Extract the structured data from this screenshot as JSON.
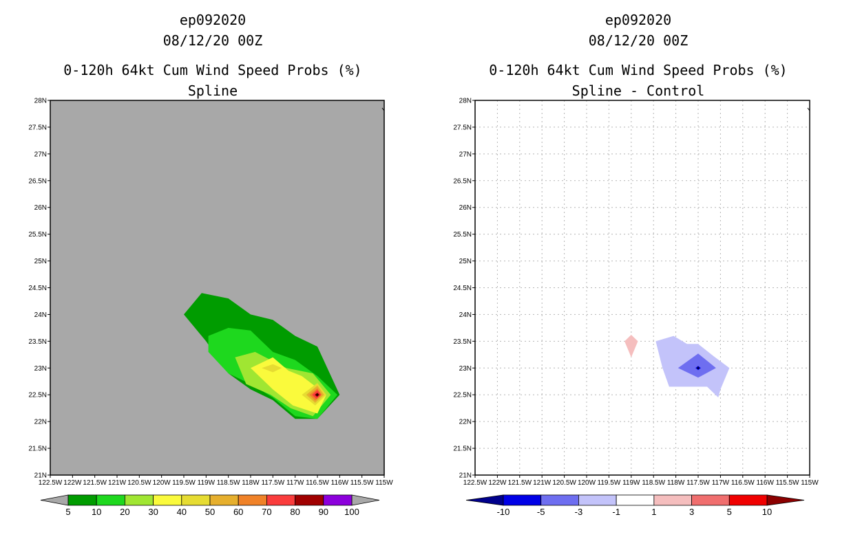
{
  "chart_data": [
    {
      "type": "contour",
      "title": "ep092020",
      "subtitle": "08/12/20 00Z",
      "header": "0-120h 64kt Cum Wind Speed Probs (%)",
      "panel_label": "Spline",
      "xlim": [
        -122.5,
        -115
      ],
      "ylim": [
        21,
        28
      ],
      "x_tick_labels": [
        "122.5W",
        "122W",
        "121.5W",
        "121W",
        "120.5W",
        "120W",
        "119.5W",
        "119W",
        "118.5W",
        "118W",
        "117.5W",
        "117W",
        "116.5W",
        "116W",
        "115.5W",
        "115W"
      ],
      "y_tick_labels": [
        "21N",
        "21.5N",
        "22N",
        "22.5N",
        "23N",
        "23.5N",
        "24N",
        "24.5N",
        "25N",
        "25.5N",
        "26N",
        "26.5N",
        "27N",
        "27.5N",
        "28N"
      ],
      "background": "#a8a8a8",
      "levels": [
        {
          "label": "5-10%",
          "color": "#009c00",
          "points": [
            [
              -119.5,
              24.0
            ],
            [
              -119.1,
              24.4
            ],
            [
              -118.5,
              24.3
            ],
            [
              -118.0,
              24.0
            ],
            [
              -117.5,
              23.9
            ],
            [
              -117.0,
              23.6
            ],
            [
              -116.5,
              23.4
            ],
            [
              -116.0,
              22.5
            ],
            [
              -116.5,
              22.05
            ],
            [
              -117.0,
              22.05
            ],
            [
              -117.5,
              22.4
            ],
            [
              -118.0,
              22.6
            ],
            [
              -118.5,
              22.9
            ],
            [
              -119.0,
              23.5
            ]
          ]
        },
        {
          "label": "10-20%",
          "color": "#1ed81e",
          "points": [
            [
              -118.95,
              23.6
            ],
            [
              -118.5,
              23.75
            ],
            [
              -118.0,
              23.7
            ],
            [
              -117.5,
              23.3
            ],
            [
              -117.0,
              23.15
            ],
            [
              -116.5,
              22.85
            ],
            [
              -116.05,
              22.5
            ],
            [
              -116.5,
              22.05
            ],
            [
              -117.0,
              22.1
            ],
            [
              -117.5,
              22.45
            ],
            [
              -118.0,
              22.7
            ],
            [
              -118.5,
              22.9
            ],
            [
              -118.95,
              23.3
            ]
          ]
        },
        {
          "label": "20-30%",
          "color": "#a0e632",
          "points": [
            [
              -118.35,
              23.2
            ],
            [
              -117.9,
              23.3
            ],
            [
              -117.2,
              23.0
            ],
            [
              -116.6,
              22.9
            ],
            [
              -116.2,
              22.5
            ],
            [
              -116.6,
              22.1
            ],
            [
              -117.1,
              22.25
            ],
            [
              -117.55,
              22.5
            ],
            [
              -118.1,
              22.7
            ]
          ]
        },
        {
          "label": "30-40%",
          "color": "#fafa3c",
          "points": [
            [
              -118.0,
              23.0
            ],
            [
              -117.5,
              23.2
            ],
            [
              -117.15,
              22.95
            ],
            [
              -116.85,
              22.85
            ],
            [
              -116.3,
              22.5
            ],
            [
              -116.5,
              22.15
            ],
            [
              -117.05,
              22.3
            ],
            [
              -117.5,
              22.6
            ]
          ]
        },
        {
          "label": "40-50%",
          "color": "#e6dc32",
          "points": [
            [
              -117.75,
              23.0
            ],
            [
              -117.5,
              23.07
            ],
            [
              -117.3,
              23.0
            ],
            [
              -117.5,
              22.92
            ]
          ]
        },
        {
          "label": "40-50%",
          "color": "#e6dc32",
          "points": [
            [
              -116.85,
              22.5
            ],
            [
              -116.5,
              22.72
            ],
            [
              -116.3,
              22.5
            ],
            [
              -116.55,
              22.3
            ]
          ]
        },
        {
          "label": "50-60%",
          "color": "#e6af2d",
          "points": [
            [
              -116.75,
              22.5
            ],
            [
              -116.5,
              22.67
            ],
            [
              -116.35,
              22.5
            ],
            [
              -116.55,
              22.35
            ]
          ]
        },
        {
          "label": "60-70%",
          "color": "#f08228",
          "points": [
            [
              -116.68,
              22.5
            ],
            [
              -116.5,
              22.62
            ],
            [
              -116.4,
              22.5
            ],
            [
              -116.55,
              22.39
            ]
          ]
        },
        {
          "label": "70-80%",
          "color": "#fa3c3c",
          "points": [
            [
              -116.62,
              22.5
            ],
            [
              -116.5,
              22.59
            ],
            [
              -116.42,
              22.5
            ],
            [
              -116.52,
              22.42
            ]
          ]
        },
        {
          "label": "80-90%",
          "color": "#a00000",
          "points": [
            [
              -116.56,
              22.5
            ],
            [
              -116.5,
              22.54
            ],
            [
              -116.45,
              22.5
            ],
            [
              -116.51,
              22.46
            ]
          ]
        }
      ],
      "colorbar": {
        "colors": [
          "#009c00",
          "#1ed81e",
          "#a0e632",
          "#fafa3c",
          "#e6dc32",
          "#e6af2d",
          "#f08228",
          "#fa3c3c",
          "#a00000",
          "#8c00dc"
        ],
        "labels": [
          "5",
          "10",
          "20",
          "30",
          "40",
          "50",
          "60",
          "70",
          "80",
          "90",
          "100"
        ],
        "end_color": "#a8a8a8"
      }
    },
    {
      "type": "contour",
      "title": "ep092020",
      "subtitle": "08/12/20 00Z",
      "header": "0-120h 64kt Cum Wind Speed Probs (%)",
      "panel_label": "Spline - Control",
      "xlim": [
        -122.5,
        -115
      ],
      "ylim": [
        21,
        28
      ],
      "x_tick_labels": [
        "122.5W",
        "122W",
        "121.5W",
        "121W",
        "120.5W",
        "120W",
        "119.5W",
        "119W",
        "118.5W",
        "118W",
        "117.5W",
        "117W",
        "116.5W",
        "116W",
        "115.5W",
        "115W"
      ],
      "y_tick_labels": [
        "21N",
        "21.5N",
        "22N",
        "22.5N",
        "23N",
        "23.5N",
        "24N",
        "24.5N",
        "25N",
        "25.5N",
        "26N",
        "26.5N",
        "27N",
        "27.5N",
        "28N"
      ],
      "background": "#ffffff",
      "grid": true,
      "levels": [
        {
          "label": "1 to 3",
          "color": "#f5bebe",
          "points": [
            [
              -119.15,
              23.5
            ],
            [
              -119.0,
              23.62
            ],
            [
              -118.85,
              23.5
            ],
            [
              -119.0,
              23.2
            ]
          ]
        },
        {
          "label": "-3 to -1",
          "color": "#c3c3fa",
          "points": [
            [
              -118.45,
              23.5
            ],
            [
              -118.05,
              23.6
            ],
            [
              -117.75,
              23.45
            ],
            [
              -117.5,
              23.45
            ],
            [
              -117.15,
              23.22
            ],
            [
              -116.8,
              23.0
            ],
            [
              -117.0,
              22.6
            ],
            [
              -117.05,
              22.45
            ],
            [
              -117.3,
              22.65
            ],
            [
              -117.8,
              22.65
            ],
            [
              -118.15,
              22.65
            ],
            [
              -118.3,
              23.0
            ]
          ]
        },
        {
          "label": "-5 to -3",
          "color": "#6e6ef0",
          "points": [
            [
              -117.95,
              23.0
            ],
            [
              -117.5,
              23.27
            ],
            [
              -117.1,
              23.0
            ],
            [
              -117.5,
              22.82
            ]
          ]
        },
        {
          "label": "-10 to -5",
          "color": "#0000e6",
          "points": [
            [
              -117.56,
              23.0
            ],
            [
              -117.5,
              23.04
            ],
            [
              -117.44,
              23.0
            ],
            [
              -117.5,
              22.96
            ]
          ]
        }
      ],
      "colorbar": {
        "colors": [
          "#0000e6",
          "#6e6ef0",
          "#c3c3fa",
          "#ffffff",
          "#f5bebe",
          "#f06e6e",
          "#f00000"
        ],
        "labels": [
          "-10",
          "-5",
          "-3",
          "-1",
          "1",
          "3",
          "5",
          "10"
        ],
        "start_color": "#00008c",
        "end_color": "#8c0000"
      }
    }
  ]
}
